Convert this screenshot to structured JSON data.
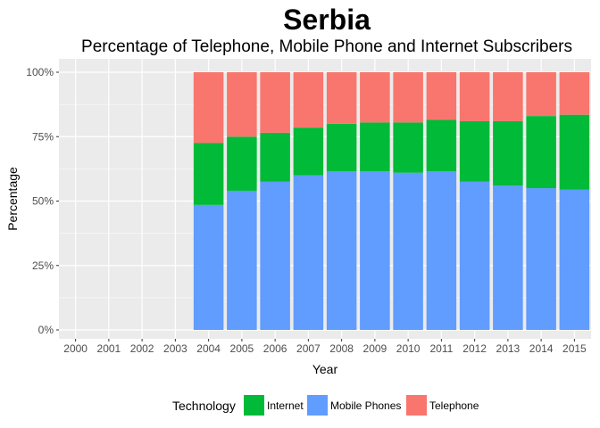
{
  "chart_data": {
    "type": "bar",
    "stacked": true,
    "title": "Serbia",
    "subtitle": "Percentage of Telephone, Mobile Phone and Internet Subscribers",
    "xlabel": "Year",
    "ylabel": "Percentage",
    "categories": [
      "2000",
      "2001",
      "2002",
      "2003",
      "2004",
      "2005",
      "2006",
      "2007",
      "2008",
      "2009",
      "2010",
      "2011",
      "2012",
      "2013",
      "2014",
      "2015"
    ],
    "y_ticks": [
      "0%",
      "25%",
      "50%",
      "75%",
      "100%"
    ],
    "ylim": [
      0,
      1
    ],
    "grid": true,
    "legend_position": "bottom",
    "legend_title": "Technology",
    "series": [
      {
        "name": "Mobile Phones",
        "color": "#619CFF",
        "values": [
          null,
          null,
          null,
          null,
          0.485,
          0.54,
          0.575,
          0.6,
          0.615,
          0.615,
          0.61,
          0.615,
          0.575,
          0.56,
          0.55,
          0.545
        ]
      },
      {
        "name": "Internet",
        "color": "#00BA38",
        "values": [
          null,
          null,
          null,
          null,
          0.24,
          0.21,
          0.19,
          0.185,
          0.185,
          0.19,
          0.195,
          0.2,
          0.235,
          0.25,
          0.28,
          0.29
        ]
      },
      {
        "name": "Telephone",
        "color": "#F8766D",
        "values": [
          null,
          null,
          null,
          null,
          0.275,
          0.25,
          0.235,
          0.215,
          0.2,
          0.195,
          0.195,
          0.185,
          0.19,
          0.19,
          0.17,
          0.165
        ]
      }
    ],
    "legend_order": [
      "Internet",
      "Mobile Phones",
      "Telephone"
    ]
  }
}
